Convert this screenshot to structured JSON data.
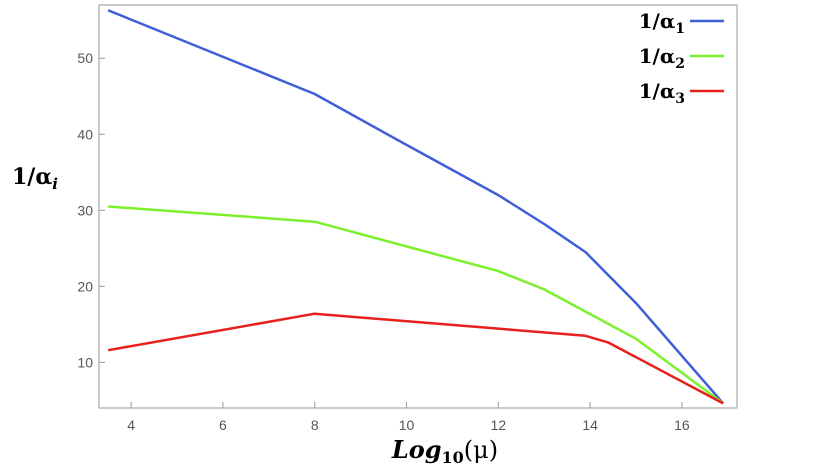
{
  "chart_data": {
    "type": "line",
    "title": "",
    "xlabel": {
      "main": "Log",
      "sub": "10",
      "rest": "(μ)"
    },
    "ylabel": {
      "main": "1/α",
      "sub": "i"
    },
    "xlim": [
      3.3,
      17.2
    ],
    "ylim": [
      4,
      57
    ],
    "xticks": [
      4,
      6,
      8,
      10,
      12,
      14,
      16
    ],
    "yticks": [
      10,
      20,
      30,
      40,
      50
    ],
    "grid": false,
    "legend_position": "top-right",
    "series": [
      {
        "name": {
          "main": "1/α",
          "sub": "1"
        },
        "color": "#3f5fd8",
        "x": [
          3.5,
          8,
          10,
          12,
          13,
          13.9,
          15,
          16.9
        ],
        "y": [
          56.3,
          45.3,
          38.6,
          32.0,
          28.2,
          24.5,
          17.8,
          4.6
        ]
      },
      {
        "name": {
          "main": "1/α",
          "sub": "2"
        },
        "color": "#7cf02b",
        "x": [
          3.5,
          8,
          12,
          13,
          15,
          16.9
        ],
        "y": [
          30.5,
          28.5,
          22.0,
          19.6,
          13.1,
          4.6
        ]
      },
      {
        "name": {
          "main": "1/α",
          "sub": "3"
        },
        "color": "#e8201c",
        "x": [
          3.5,
          8,
          13.9,
          14.4,
          16.9
        ],
        "y": [
          11.6,
          16.4,
          13.5,
          12.6,
          4.6
        ]
      }
    ]
  }
}
